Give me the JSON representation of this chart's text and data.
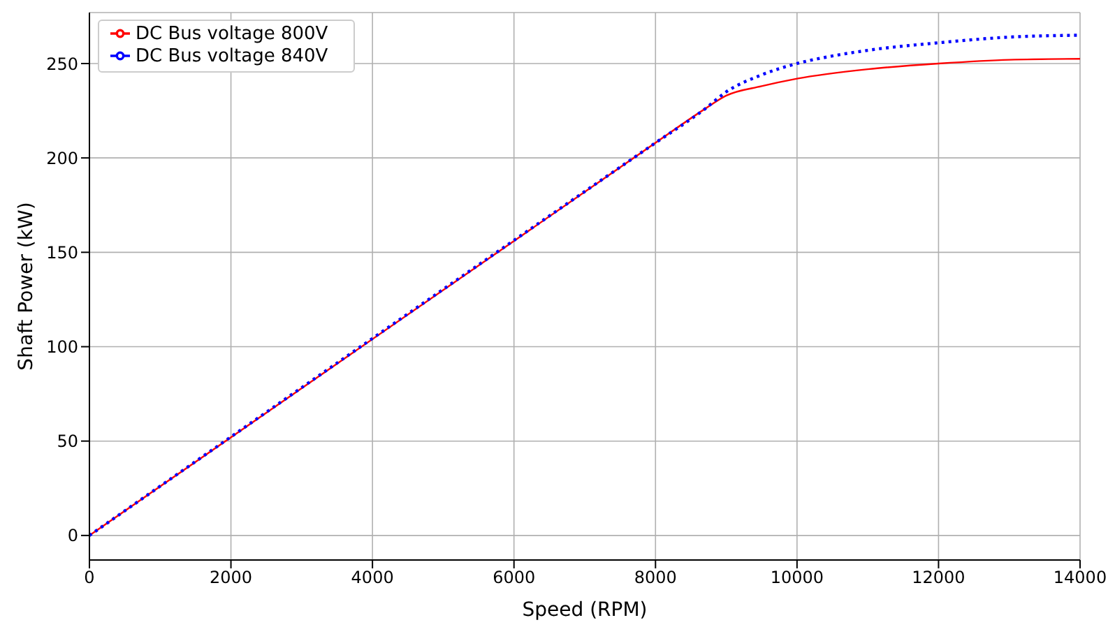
{
  "chart_data": {
    "type": "line",
    "xlabel": "Speed (RPM)",
    "ylabel": "Shaft Power (kW)",
    "series": [
      {
        "name": "DC Bus voltage 800V",
        "color": "#ff0000",
        "line_style": "solid",
        "x": [
          0,
          8000,
          8700,
          9000,
          9500,
          10000,
          11000,
          12000,
          13000,
          14000
        ],
        "values": [
          0,
          208,
          226,
          233,
          238,
          242,
          247,
          250,
          252,
          252.5
        ]
      },
      {
        "name": "DC Bus voltage 840V",
        "color": "#0000ff",
        "line_style": "dotted",
        "x": [
          0,
          8000,
          8700,
          9000,
          9500,
          10000,
          10500,
          11000,
          12000,
          13000,
          14000
        ],
        "values": [
          0,
          208,
          226,
          235,
          244,
          250,
          254,
          257,
          261,
          264,
          265
        ]
      }
    ],
    "xlim": [
      0,
      14000
    ],
    "xticks": [
      0,
      2000,
      4000,
      6000,
      8000,
      10000,
      12000,
      14000
    ],
    "ylim": [
      -13,
      277
    ],
    "yticks": [
      0,
      50,
      100,
      150,
      200,
      250
    ],
    "grid": true,
    "legend": "top left",
    "marker": "none"
  }
}
